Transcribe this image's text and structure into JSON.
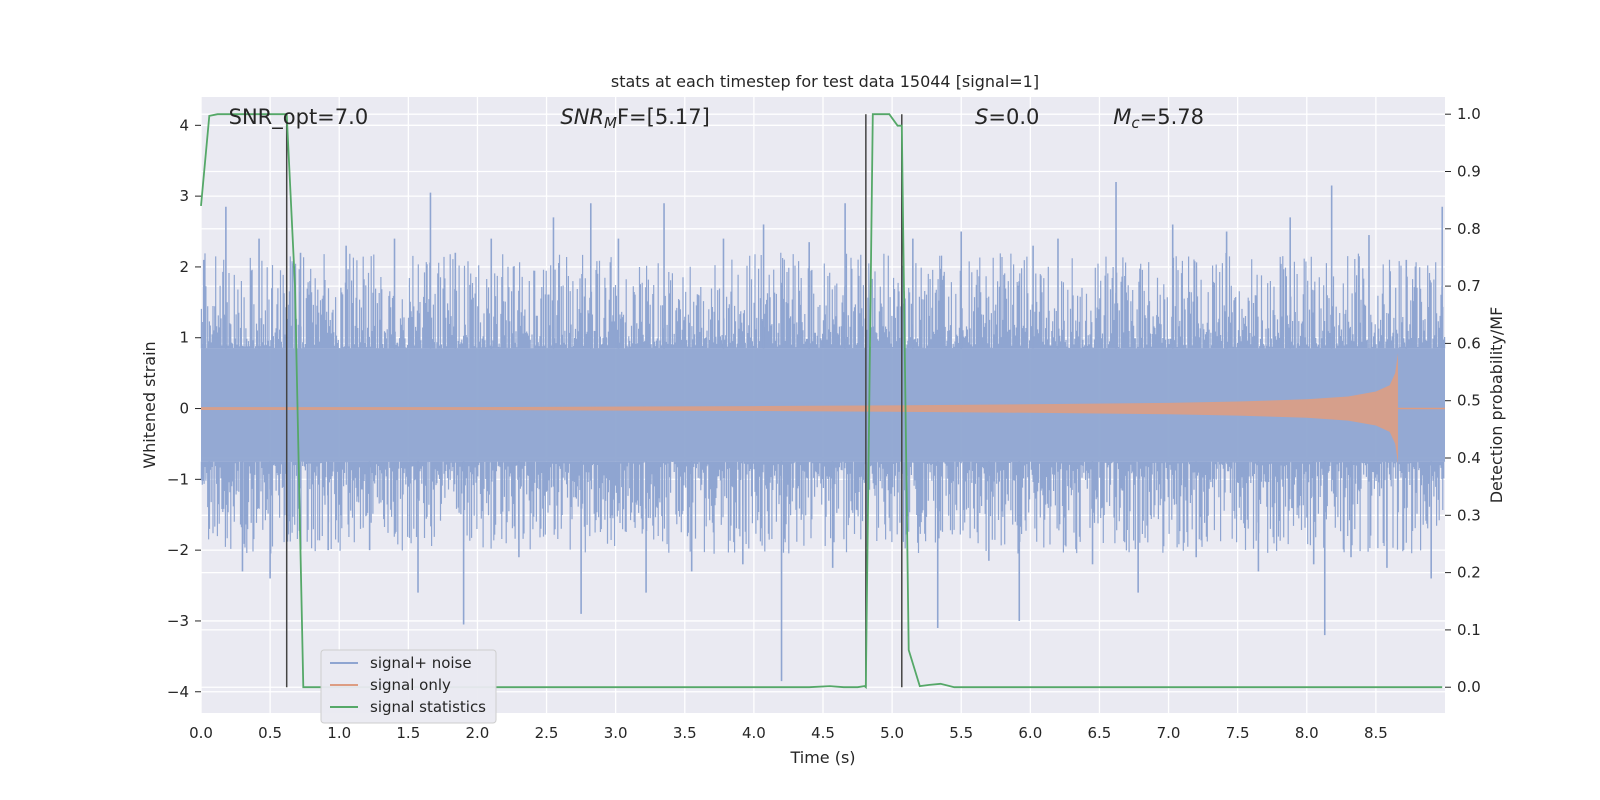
{
  "chart_data": {
    "type": "line",
    "title": "stats at each timestep for test data 15044 [signal=1]",
    "xlabel": "Time (s)",
    "ylabel": "Whitened strain",
    "y2label": "Detection probability/MF",
    "xlim": [
      0.0,
      9.0
    ],
    "ylim": [
      -4.3,
      4.4
    ],
    "y2lim": [
      -0.045,
      1.03
    ],
    "xticks": [
      0.0,
      0.5,
      1.0,
      1.5,
      2.0,
      2.5,
      3.0,
      3.5,
      4.0,
      4.5,
      5.0,
      5.5,
      6.0,
      6.5,
      7.0,
      7.5,
      8.0,
      8.5
    ],
    "xtick_labels": [
      "0.0",
      "0.5",
      "1.0",
      "1.5",
      "2.0",
      "2.5",
      "3.0",
      "3.5",
      "4.0",
      "4.5",
      "5.0",
      "5.5",
      "6.0",
      "6.5",
      "7.0",
      "7.5",
      "8.0",
      "8.5"
    ],
    "yticks": [
      -4,
      -3,
      -2,
      -1,
      0,
      1,
      2,
      3,
      4
    ],
    "ytick_labels": [
      "−4",
      "−3",
      "−2",
      "−1",
      "0",
      "1",
      "2",
      "3",
      "4"
    ],
    "y2ticks": [
      0.0,
      0.1,
      0.2,
      0.3,
      0.4,
      0.5,
      0.6,
      0.7,
      0.8,
      0.9,
      1.0
    ],
    "y2tick_labels": [
      "0.0",
      "0.1",
      "0.2",
      "0.3",
      "0.4",
      "0.5",
      "0.6",
      "0.7",
      "0.8",
      "0.9",
      "1.0"
    ],
    "grid": true,
    "legend_position": "lower-left",
    "annotations": [
      {
        "key": "snr_opt",
        "text": "SNR_opt=7.0",
        "x": 0.2
      },
      {
        "key": "snr_mf",
        "prefix": "SNR",
        "sub": "M",
        "suffix": "F=[5.17]",
        "x": 2.6
      },
      {
        "key": "s",
        "prefix": "S",
        "suffix": "=0.0",
        "x": 5.6
      },
      {
        "key": "mc",
        "prefix": "M",
        "sub": "c",
        "suffix": "=5.78",
        "x": 6.6
      }
    ],
    "vertical_markers": [
      0.62,
      4.81,
      5.07
    ],
    "series": [
      {
        "name": "signal+ noise",
        "color": "#8fa5d1",
        "summary": "dense whitened noise filling the full time range",
        "core_band": [
          -0.75,
          0.85
        ],
        "peaks": [
          {
            "x": 0.02,
            "v": 2.1
          },
          {
            "x": 0.06,
            "v": -1.7
          },
          {
            "x": 0.18,
            "v": 2.85
          },
          {
            "x": 0.3,
            "v": -2.3
          },
          {
            "x": 0.42,
            "v": 2.4
          },
          {
            "x": 0.5,
            "v": -2.4
          },
          {
            "x": 0.72,
            "v": 2.2
          },
          {
            "x": 0.92,
            "v": -2.0
          },
          {
            "x": 1.05,
            "v": 2.3
          },
          {
            "x": 1.22,
            "v": -2.0
          },
          {
            "x": 1.4,
            "v": 2.4
          },
          {
            "x": 1.57,
            "v": -2.6
          },
          {
            "x": 1.66,
            "v": 3.05
          },
          {
            "x": 1.84,
            "v": 2.2
          },
          {
            "x": 1.9,
            "v": -3.05
          },
          {
            "x": 2.1,
            "v": 2.4
          },
          {
            "x": 2.3,
            "v": -2.1
          },
          {
            "x": 2.55,
            "v": 2.7
          },
          {
            "x": 2.75,
            "v": -2.9
          },
          {
            "x": 2.82,
            "v": 2.9
          },
          {
            "x": 3.02,
            "v": 2.4
          },
          {
            "x": 3.22,
            "v": -2.6
          },
          {
            "x": 3.35,
            "v": 2.9
          },
          {
            "x": 3.55,
            "v": -2.3
          },
          {
            "x": 3.78,
            "v": 2.4
          },
          {
            "x": 3.92,
            "v": -2.2
          },
          {
            "x": 4.07,
            "v": 2.6
          },
          {
            "x": 4.2,
            "v": -3.85
          },
          {
            "x": 4.4,
            "v": 2.35
          },
          {
            "x": 4.57,
            "v": -2.25
          },
          {
            "x": 4.66,
            "v": 2.9
          },
          {
            "x": 5.15,
            "v": 2.4
          },
          {
            "x": 5.33,
            "v": -3.1
          },
          {
            "x": 5.5,
            "v": 2.5
          },
          {
            "x": 5.7,
            "v": -2.15
          },
          {
            "x": 5.92,
            "v": -3.0
          },
          {
            "x": 6.02,
            "v": 2.3
          },
          {
            "x": 6.2,
            "v": 2.4
          },
          {
            "x": 6.45,
            "v": -2.2
          },
          {
            "x": 6.62,
            "v": 3.2
          },
          {
            "x": 6.78,
            "v": -2.6
          },
          {
            "x": 7.03,
            "v": 2.6
          },
          {
            "x": 7.2,
            "v": -2.1
          },
          {
            "x": 7.42,
            "v": 2.5
          },
          {
            "x": 7.65,
            "v": -2.3
          },
          {
            "x": 7.88,
            "v": 2.7
          },
          {
            "x": 8.05,
            "v": -2.2
          },
          {
            "x": 8.13,
            "v": -3.2
          },
          {
            "x": 8.18,
            "v": 3.15
          },
          {
            "x": 8.32,
            "v": -2.1
          },
          {
            "x": 8.45,
            "v": 2.45
          },
          {
            "x": 8.58,
            "v": -2.25
          },
          {
            "x": 8.72,
            "v": 2.1
          },
          {
            "x": 8.9,
            "v": -2.4
          },
          {
            "x": 8.98,
            "v": 2.85
          }
        ]
      },
      {
        "name": "signal only",
        "color": "#dd9d83",
        "summary": "chirp with growing amplitude ending at merger near 8.66 s",
        "x": [
          0.0,
          2.0,
          4.0,
          5.0,
          6.0,
          7.0,
          7.5,
          8.0,
          8.3,
          8.5,
          8.6,
          8.64,
          8.66
        ],
        "amp": [
          0.02,
          0.02,
          0.035,
          0.045,
          0.06,
          0.08,
          0.1,
          0.13,
          0.17,
          0.24,
          0.33,
          0.5,
          0.78
        ],
        "end_x": 8.66
      },
      {
        "name": "signal statistics",
        "color": "#55a868",
        "axis": "right",
        "x": [
          0.0,
          0.06,
          0.12,
          0.2,
          0.3,
          0.4,
          0.5,
          0.6,
          0.62,
          0.68,
          0.74,
          0.8,
          1.0,
          2.0,
          3.0,
          4.0,
          4.4,
          4.55,
          4.65,
          4.75,
          4.8,
          4.81,
          4.86,
          4.92,
          4.98,
          5.04,
          5.07,
          5.12,
          5.2,
          5.27,
          5.35,
          5.45,
          5.6,
          6.0,
          7.0,
          8.0,
          8.98
        ],
        "y": [
          0.84,
          0.997,
          1.0,
          1.0,
          1.0,
          1.0,
          1.0,
          1.0,
          1.0,
          0.7,
          0.0,
          0.0,
          0.0,
          0.0,
          0.0,
          0.0,
          0.0,
          0.002,
          0.0,
          0.0,
          0.002,
          0.0,
          1.0,
          1.0,
          1.0,
          0.98,
          0.98,
          0.065,
          0.002,
          0.004,
          0.006,
          0.0,
          0.0,
          0.0,
          0.0,
          0.0,
          0.0
        ]
      }
    ]
  },
  "colors": {
    "plot_background": "#eaeaf2",
    "grid": "#ffffff",
    "marker": "#444444"
  }
}
